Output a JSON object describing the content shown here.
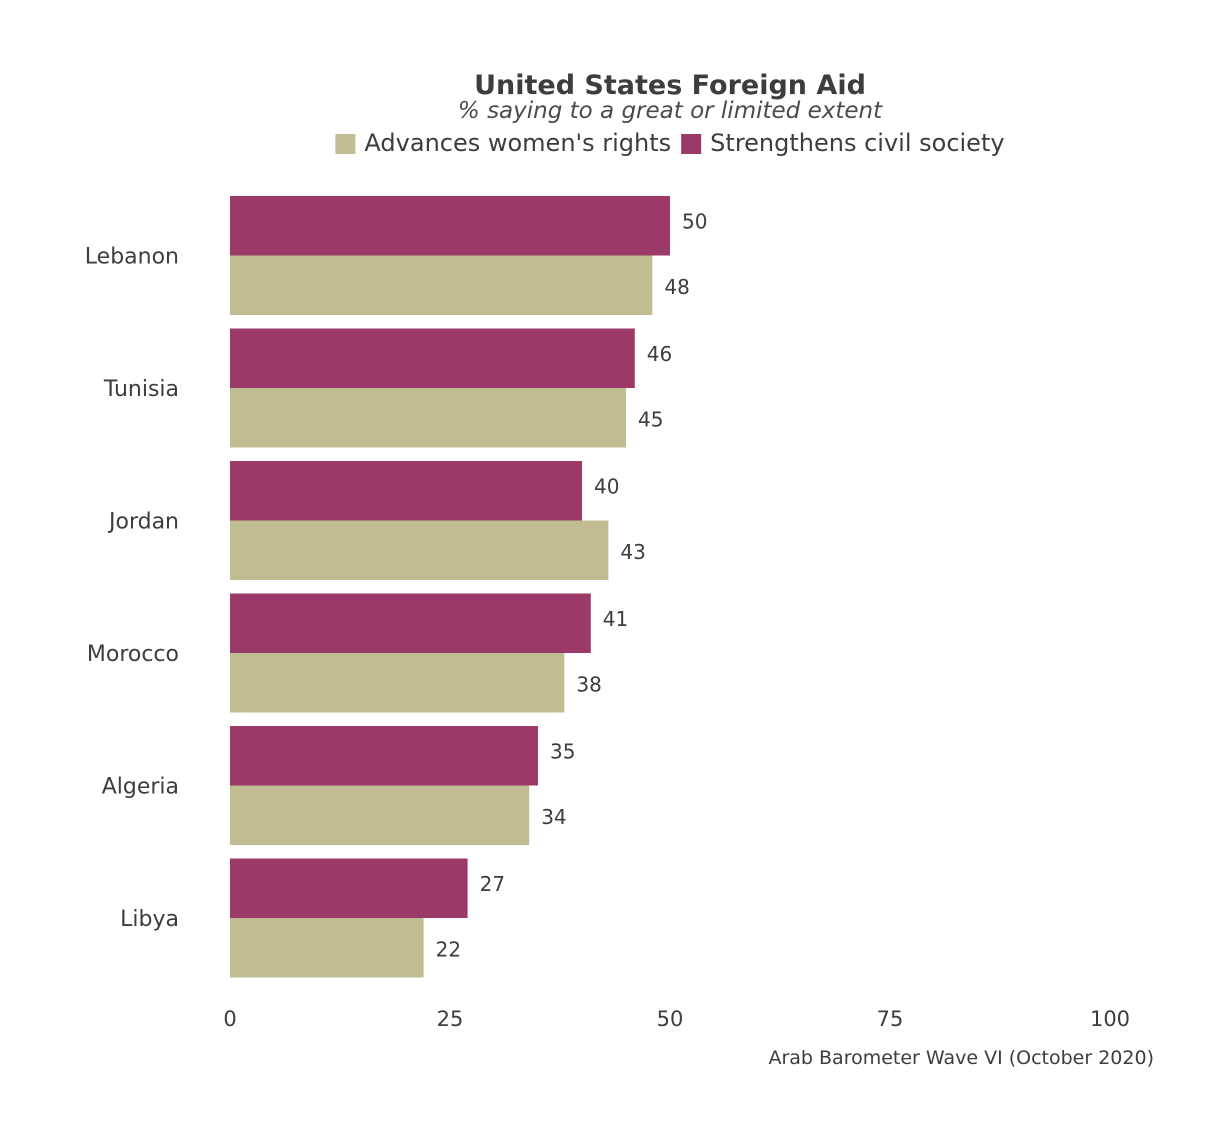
{
  "chart_data": {
    "type": "bar",
    "orientation": "horizontal",
    "title": "United States Foreign Aid",
    "subtitle": "% saying to a great or limited extent",
    "caption": "Arab Barometer Wave VI (October 2020)",
    "categories": [
      "Lebanon",
      "Tunisia",
      "Jordan",
      "Morocco",
      "Algeria",
      "Libya"
    ],
    "series": [
      {
        "name": "Strengthens civil society",
        "color": "#9b3a68",
        "values": [
          50,
          46,
          40,
          41,
          35,
          27
        ]
      },
      {
        "name": "Advances women's rights",
        "color": "#bfbd91",
        "values": [
          48,
          45,
          43,
          38,
          34,
          22
        ]
      }
    ],
    "legend_order": [
      "Advances women's rights",
      "Strengthens civil society"
    ],
    "legend_position": "top",
    "xlim": [
      0,
      100
    ],
    "xticks": [
      0,
      25,
      50,
      75,
      100
    ],
    "grid": false,
    "data_labels": true
  }
}
